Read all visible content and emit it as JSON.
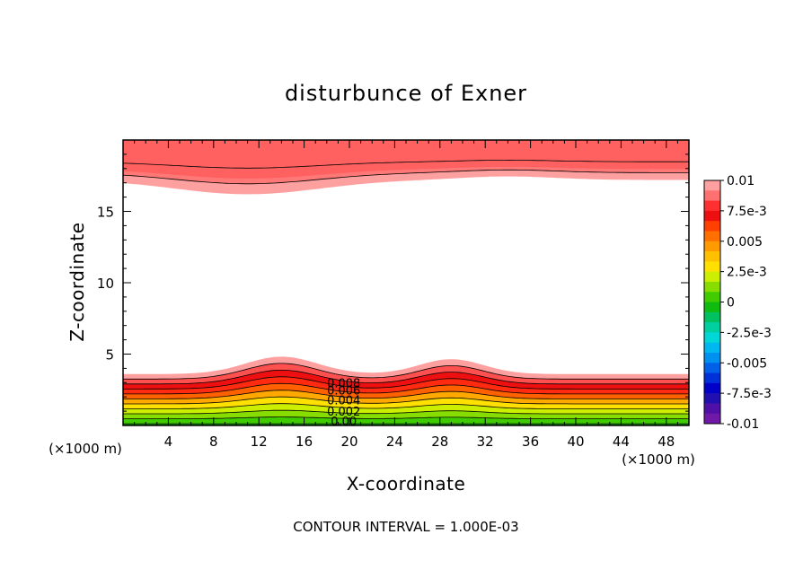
{
  "chart_data": {
    "type": "contour",
    "title": "disturbunce of Exner",
    "xlabel": "X-coordinate",
    "ylabel": "Z-coordinate",
    "x_unit": "(×1000 m)",
    "y_unit": "(×1000 m)",
    "xlim": [
      0,
      50
    ],
    "ylim": [
      0,
      20
    ],
    "x_ticks": [
      4,
      8,
      12,
      16,
      20,
      24,
      28,
      32,
      36,
      40,
      44,
      48
    ],
    "y_ticks": [
      5,
      10,
      15
    ],
    "footer": "CONTOUR INTERVAL = 1.000E-03",
    "contour_interval": 0.001,
    "colorbar": {
      "min": -0.01,
      "max": 0.01,
      "labels": [
        {
          "value": 0.01,
          "text": "0.01"
        },
        {
          "value": 0.0075,
          "text": "7.5e-3"
        },
        {
          "value": 0.005,
          "text": "0.005"
        },
        {
          "value": 0.0025,
          "text": "2.5e-3"
        },
        {
          "value": 0,
          "text": "0"
        },
        {
          "value": -0.0025,
          "text": "-2.5e-3"
        },
        {
          "value": -0.005,
          "text": "-0.005"
        },
        {
          "value": -0.0075,
          "text": "-7.5e-3"
        },
        {
          "value": -0.01,
          "text": "-0.01"
        }
      ],
      "colors": [
        "#ffa0a0",
        "#ff7070",
        "#ff3030",
        "#ee1010",
        "#ff4000",
        "#ff7000",
        "#ff9a00",
        "#ffc000",
        "#ffe000",
        "#ccee00",
        "#88dd00",
        "#40cc00",
        "#10bb10",
        "#00c060",
        "#00d0a0",
        "#00d8d8",
        "#00b8f0",
        "#0090f0",
        "#0060e8",
        "#0030d8",
        "#0000c8",
        "#2010b0",
        "#5010a8",
        "#7018a8"
      ]
    },
    "contour_labels": [
      {
        "text": "0.008",
        "x": 19.5,
        "y": 3.0
      },
      {
        "text": "0.006",
        "x": 19.5,
        "y": 2.5
      },
      {
        "text": "0.004",
        "x": 19.5,
        "y": 1.8
      },
      {
        "text": "0.002",
        "x": 19.5,
        "y": 1.0
      },
      {
        "text": "0.00",
        "x": 19.5,
        "y": 0.3
      }
    ]
  }
}
